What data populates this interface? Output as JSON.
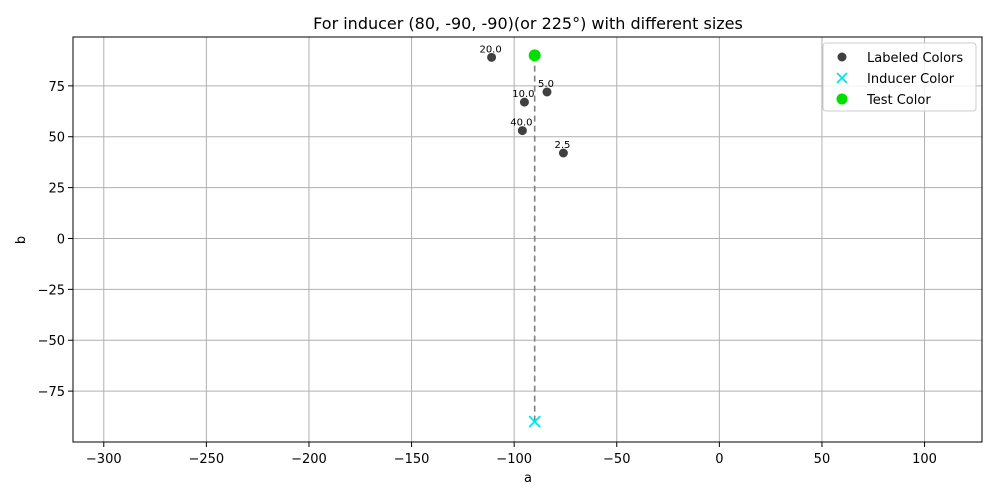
{
  "chart_data": {
    "type": "scatter",
    "title": "For inducer (80, -90, -90)(or 225°) with different sizes",
    "xlabel": "a",
    "ylabel": "b",
    "xlim": [
      -315,
      128
    ],
    "ylim": [
      -100,
      99
    ],
    "x_ticks": [
      -300,
      -250,
      -200,
      -150,
      -100,
      -50,
      0,
      50,
      100
    ],
    "y_ticks": [
      -75,
      -50,
      -25,
      0,
      25,
      50,
      75
    ],
    "grid": true,
    "legend_position": "top-right",
    "series": [
      {
        "name": "Labeled Colors",
        "marker": "circle",
        "color": "#404040",
        "points": [
          {
            "x": -111,
            "y": 89,
            "label": "20.0"
          },
          {
            "x": -84,
            "y": 72,
            "label": "5.0"
          },
          {
            "x": -95,
            "y": 67,
            "label": "10.0"
          },
          {
            "x": -96,
            "y": 53,
            "label": "40.0"
          },
          {
            "x": -76,
            "y": 42,
            "label": "2.5"
          }
        ]
      },
      {
        "name": "Inducer Color",
        "marker": "x",
        "color": "#00e5ee",
        "points": [
          {
            "x": -90,
            "y": -90
          }
        ]
      },
      {
        "name": "Test Color",
        "marker": "circle",
        "color": "#00e000",
        "points": [
          {
            "x": -90,
            "y": 90
          }
        ]
      }
    ],
    "connector": {
      "from": [
        -90,
        -90
      ],
      "to": [
        -90,
        90
      ],
      "style": "dashed",
      "color": "#808080"
    }
  }
}
